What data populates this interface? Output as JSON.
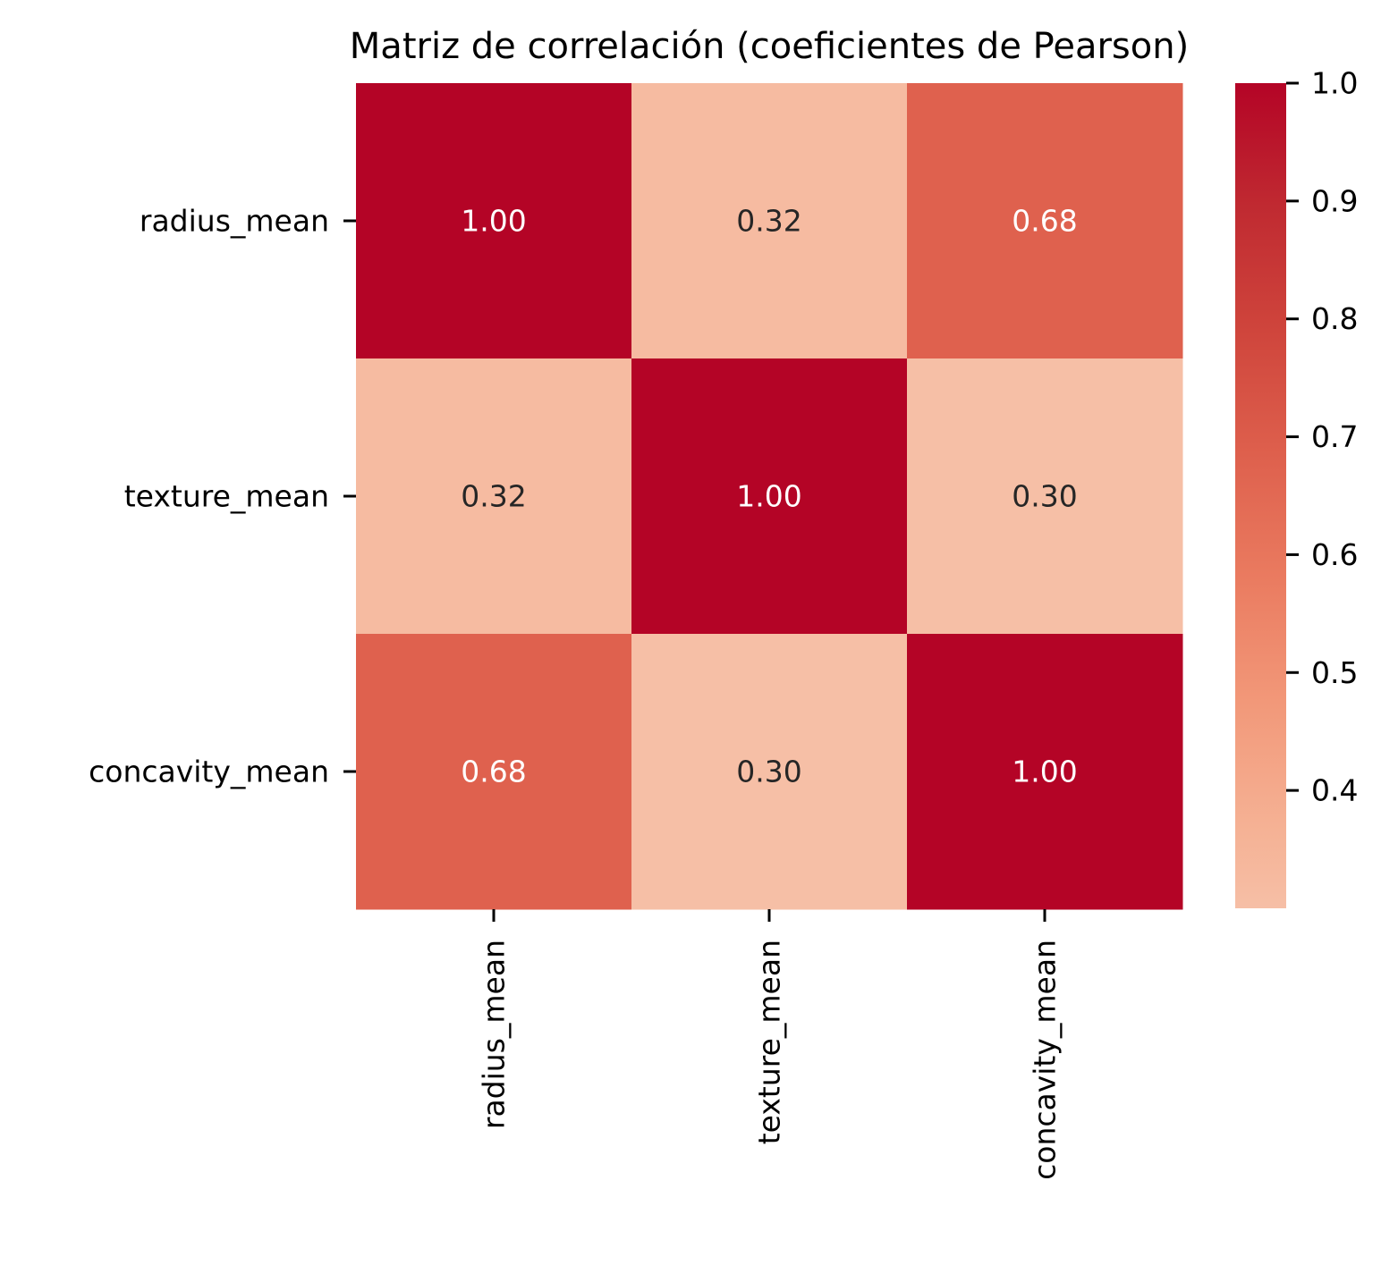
{
  "chart_data": {
    "type": "heatmap",
    "title": "Matriz de correlación (coeficientes de Pearson)",
    "x_categories": [
      "radius_mean",
      "texture_mean",
      "concavity_mean"
    ],
    "y_categories": [
      "radius_mean",
      "texture_mean",
      "concavity_mean"
    ],
    "values": [
      [
        1.0,
        0.32,
        0.68
      ],
      [
        0.32,
        1.0,
        0.3
      ],
      [
        0.68,
        0.3,
        1.0
      ]
    ],
    "cell_labels": [
      [
        "1.00",
        "0.32",
        "0.68"
      ],
      [
        "0.32",
        "1.00",
        "0.30"
      ],
      [
        "0.68",
        "0.30",
        "1.00"
      ]
    ],
    "colormap": "coolwarm",
    "colorbar": {
      "range": [
        0.3,
        1.0
      ],
      "ticks": [
        0.4,
        0.5,
        0.6,
        0.7,
        0.8,
        0.9,
        1.0
      ],
      "tick_labels": [
        "0.4",
        "0.5",
        "0.6",
        "0.7",
        "0.8",
        "0.9",
        "1.0"
      ],
      "placement": "right"
    },
    "colors": {
      "high": "#b40426",
      "low": "#f6bfa6",
      "text_dark": "#262626",
      "text_light": "#ffffff"
    }
  }
}
